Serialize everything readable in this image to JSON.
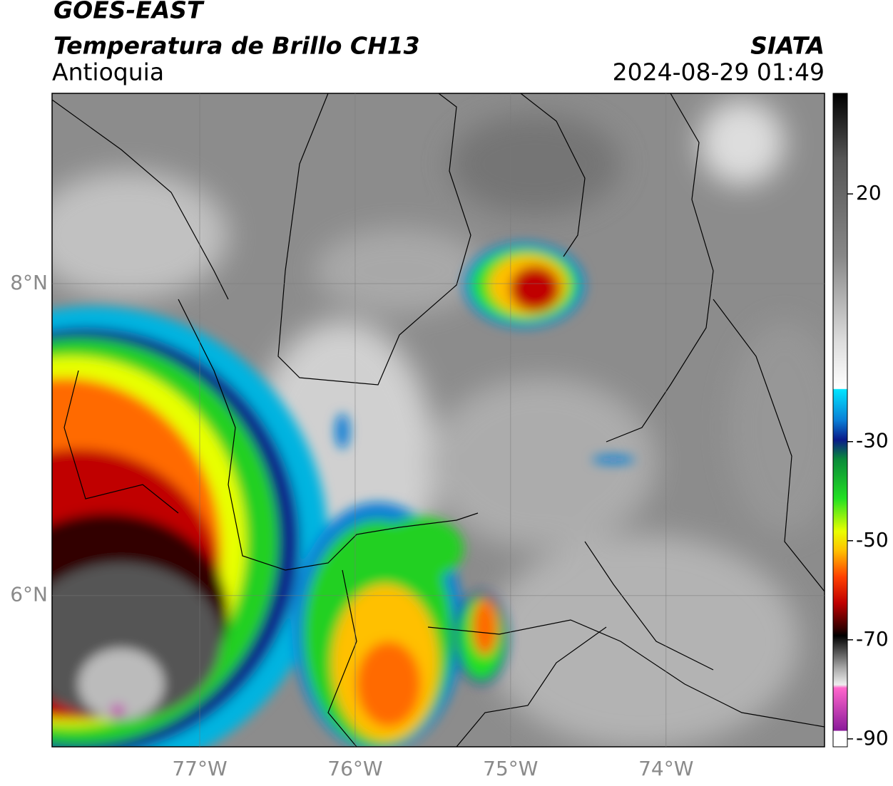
{
  "header": {
    "satellite": "GOES-EAST",
    "product": "Temperatura de Brillo CH13",
    "region": "Antioquia",
    "source": "SIATA",
    "datetime": "2024-08-29 01:49"
  },
  "map": {
    "xlim": [
      -77.95,
      -72.98
    ],
    "ylim": [
      5.03,
      9.22
    ],
    "xticks": [
      {
        "value": -77,
        "label": "77°W"
      },
      {
        "value": -76,
        "label": "76°W"
      },
      {
        "value": -75,
        "label": "75°W"
      },
      {
        "value": -74,
        "label": "74°W"
      }
    ],
    "yticks": [
      {
        "value": 8,
        "label": "8°N"
      },
      {
        "value": 6,
        "label": "6°N"
      }
    ],
    "grid": true
  },
  "colorbar": {
    "lim": [
      -91.6,
      40.3
    ],
    "ticks": [
      20,
      -30,
      -50,
      -70,
      -90
    ]
  }
}
